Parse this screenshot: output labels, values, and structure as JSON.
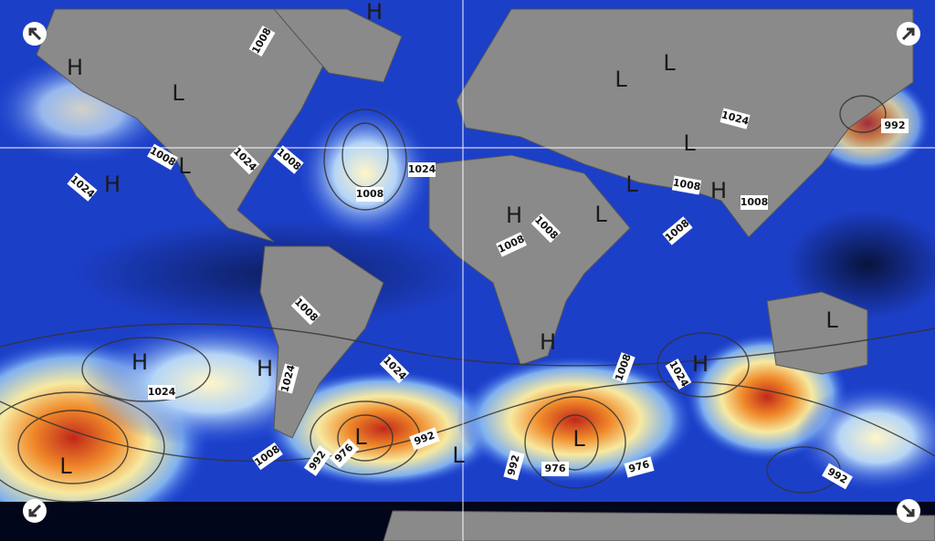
{
  "map": {
    "isobar_labels": [
      1008,
      1008,
      1024,
      1008,
      1024,
      1008,
      1024,
      1024,
      992,
      1008,
      1008,
      1008,
      1008,
      1008,
      1008,
      1024,
      1024,
      1024,
      1008,
      1024,
      1008,
      992,
      976,
      992,
      992,
      976,
      976,
      992
    ],
    "pressure_centers": [
      "H",
      "L",
      "H",
      "L",
      "H",
      "L",
      "L",
      "H",
      "L",
      "L",
      "H",
      "H",
      "H",
      "H",
      "L",
      "L",
      "L",
      "L",
      "L",
      "L",
      "H"
    ]
  }
}
